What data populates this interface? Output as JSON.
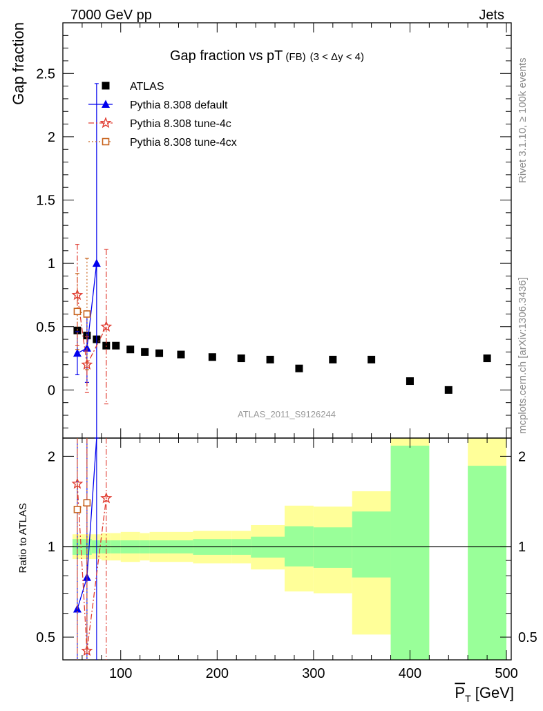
{
  "header": {
    "left": "7000 GeV pp",
    "right": "Jets",
    "title": "Gap fraction vs pT",
    "title_sub": "(FB)",
    "title_range": "(3 < Δy < 4)",
    "side_label_top": "Rivet 3.1.10, ≥ 100k events",
    "side_label_bottom": "mcplots.cern.ch [arXiv:1306.3436]",
    "watermark": "ATLAS_2011_S9126244"
  },
  "chart_data": [
    {
      "type": "scatter",
      "panel": "main",
      "ylabel": "Gap fraction",
      "xlabel": "",
      "xlim": [
        40,
        505
      ],
      "ylim": [
        -0.38,
        2.9
      ],
      "yticks": [
        "0",
        "0.5",
        "1",
        "1.5",
        "2",
        "2.5"
      ],
      "ytick_values": [
        0,
        0.5,
        1,
        1.5,
        2,
        2.5
      ],
      "legend_position": "top-left",
      "series": [
        {
          "name": "ATLAS",
          "color": "#000000",
          "marker": "square",
          "x": [
            55,
            65,
            75,
            85,
            95,
            110,
            125,
            140,
            162.5,
            195,
            225,
            255,
            285,
            320,
            360,
            400,
            440,
            480
          ],
          "y": [
            0.47,
            0.43,
            0.4,
            0.35,
            0.35,
            0.32,
            0.3,
            0.29,
            0.28,
            0.26,
            0.25,
            0.24,
            0.17,
            0.24,
            0.24,
            0.07,
            0.0,
            0.25
          ]
        },
        {
          "name": "Pythia 8.308 default",
          "color": "#0000ee",
          "marker": "triangle",
          "line": "solid",
          "x": [
            55,
            65,
            75
          ],
          "y": [
            0.29,
            0.33,
            1.0
          ],
          "yerr": [
            0.17,
            0.27,
            1.42
          ]
        },
        {
          "name": "Pythia 8.308 tune-4c",
          "color": "#e03c31",
          "marker": "star",
          "line": "dashdot",
          "x": [
            55,
            65,
            85
          ],
          "y": [
            0.75,
            0.2,
            0.5
          ],
          "yerr": [
            0.4,
            0.22,
            0.61
          ]
        },
        {
          "name": "Pythia 8.308 tune-4cx",
          "color": "#c8641e",
          "marker": "open-square",
          "line": "dotted",
          "x": [
            55,
            65
          ],
          "y": [
            0.62,
            0.6
          ],
          "yerr": [
            0.3,
            0.44
          ]
        }
      ]
    },
    {
      "type": "line",
      "panel": "ratio",
      "ylabel": "Ratio to ATLAS",
      "xlabel": "P_T [GeV]",
      "xlim": [
        40,
        505
      ],
      "ylim": [
        0.42,
        2.3
      ],
      "log_y": true,
      "reference_line": 1,
      "yticks": [
        "0.5",
        "1",
        "2"
      ],
      "ytick_values": [
        0.5,
        1,
        2
      ],
      "xticks": [
        "100",
        "200",
        "300",
        "400",
        "500"
      ],
      "xtick_values": [
        100,
        200,
        300,
        400,
        500
      ],
      "uncertainty_bands": {
        "bin_edges": [
          50,
          60,
          70,
          80,
          90,
          100,
          120,
          130,
          150,
          175,
          215,
          235,
          270,
          300,
          340,
          380,
          420,
          460,
          500
        ],
        "inner_color": "#99ff99",
        "outer_color": "#ffff99",
        "inner_up": [
          1.06,
          1.06,
          1.05,
          1.05,
          1.05,
          1.05,
          1.05,
          1.05,
          1.05,
          1.06,
          1.06,
          1.08,
          1.17,
          1.16,
          1.31,
          2.17,
          null,
          1.86
        ],
        "inner_down": [
          0.94,
          0.94,
          0.95,
          0.95,
          0.95,
          0.95,
          0.95,
          0.95,
          0.95,
          0.94,
          0.94,
          0.92,
          0.86,
          0.85,
          0.79,
          0.42,
          null,
          0.42
        ],
        "outer_up": [
          1.1,
          1.1,
          1.1,
          1.11,
          1.11,
          1.12,
          1.11,
          1.12,
          1.12,
          1.13,
          1.13,
          1.18,
          1.37,
          1.36,
          1.53,
          2.3,
          null,
          2.3
        ],
        "outer_down": [
          0.91,
          0.91,
          0.91,
          0.9,
          0.9,
          0.89,
          0.9,
          0.89,
          0.89,
          0.88,
          0.88,
          0.84,
          0.71,
          0.7,
          0.51,
          0.42,
          null,
          0.42
        ]
      },
      "series": [
        {
          "name": "Pythia 8.308 default",
          "color": "#0000ee",
          "marker": "triangle",
          "line": "solid",
          "x": [
            55,
            65,
            75
          ],
          "y": [
            0.62,
            0.79,
            2.3
          ]
        },
        {
          "name": "Pythia 8.308 tune-4c",
          "color": "#e03c31",
          "marker": "star",
          "line": "dashdot",
          "x": [
            55,
            65,
            85
          ],
          "y": [
            1.62,
            0.45,
            1.45
          ]
        },
        {
          "name": "Pythia 8.308 tune-4cx",
          "color": "#c8641e",
          "marker": "open-square",
          "line": "dotted",
          "x": [
            55,
            65
          ],
          "y": [
            1.33,
            1.4
          ]
        }
      ]
    }
  ]
}
